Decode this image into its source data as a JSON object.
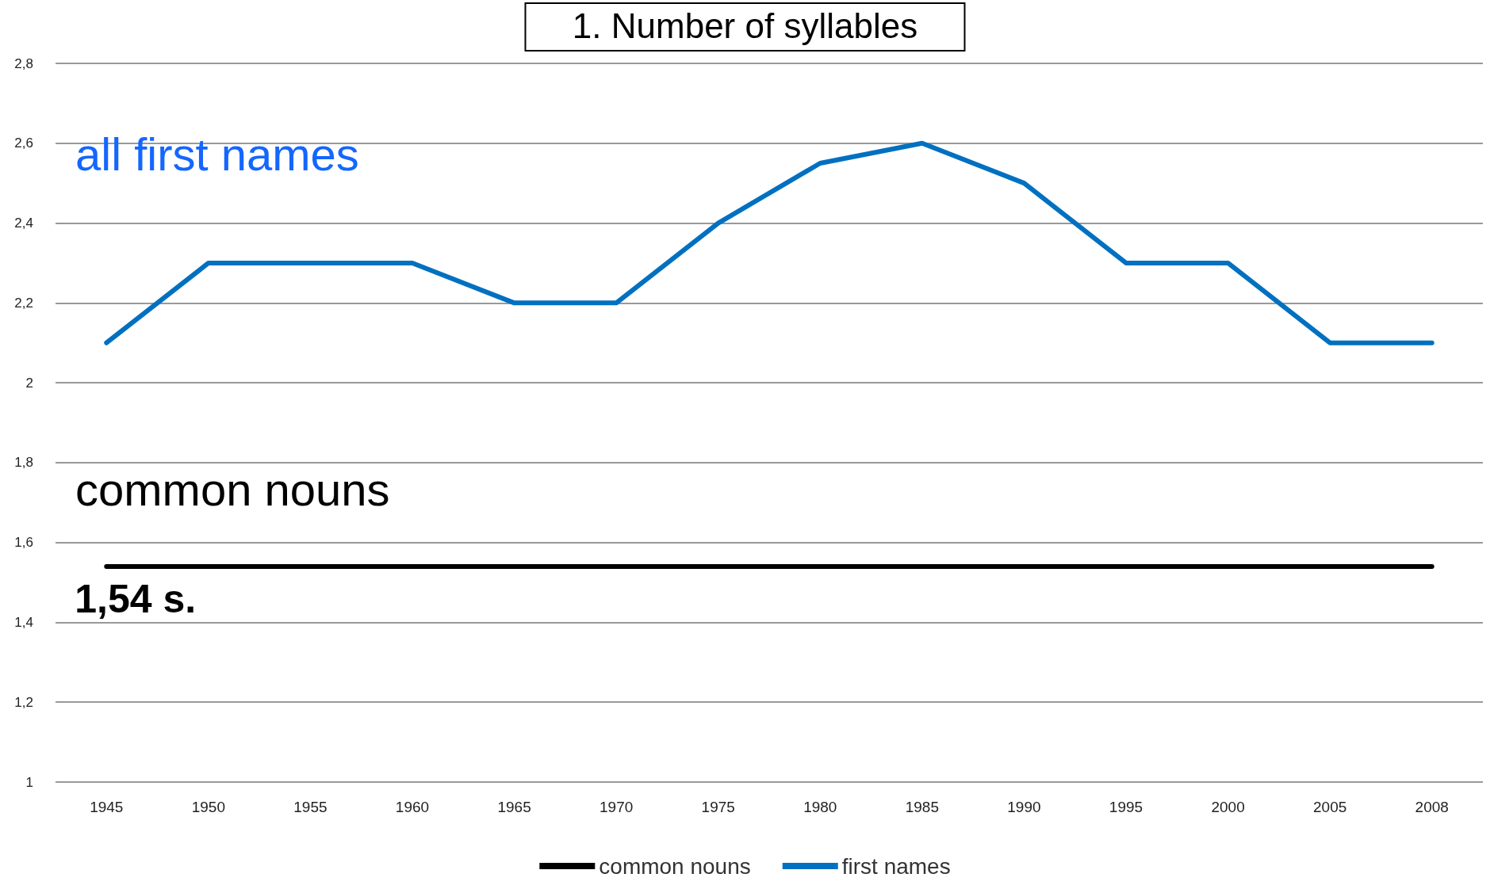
{
  "chart_data": {
    "type": "line",
    "title": "1. Number of syllables",
    "categories": [
      "1945",
      "1950",
      "1955",
      "1960",
      "1965",
      "1970",
      "1975",
      "1980",
      "1985",
      "1990",
      "1995",
      "2000",
      "2005",
      "2008"
    ],
    "series": [
      {
        "name": "common nouns",
        "color": "#000000",
        "values": [
          1.54,
          1.54,
          1.54,
          1.54,
          1.54,
          1.54,
          1.54,
          1.54,
          1.54,
          1.54,
          1.54,
          1.54,
          1.54,
          1.54
        ]
      },
      {
        "name": "first names",
        "color": "#0070c0",
        "values": [
          2.1,
          2.3,
          2.3,
          2.3,
          2.2,
          2.2,
          2.4,
          2.55,
          2.6,
          2.5,
          2.3,
          2.3,
          2.1,
          2.1
        ]
      }
    ],
    "ylim": [
      1,
      2.8
    ],
    "yticks": [
      1,
      {
        "value": 1.2,
        "label": "1,2"
      },
      {
        "value": 1.4,
        "label": "1,4"
      },
      {
        "value": 1.6,
        "label": "1,6"
      },
      {
        "value": 1.8,
        "label": "1,8"
      },
      2,
      {
        "value": 2.2,
        "label": "2,2"
      },
      {
        "value": 2.4,
        "label": "2,4"
      },
      {
        "value": 2.6,
        "label": "2,6"
      },
      {
        "value": 2.8,
        "label": "2,8"
      }
    ],
    "annotations": [
      "all first names",
      "common nouns",
      {
        "text": "1,54 s.",
        "x": "1945",
        "y": 1.54
      }
    ],
    "grid": "y",
    "legend": "bottom",
    "marker": "none",
    "line_style": "solid"
  }
}
